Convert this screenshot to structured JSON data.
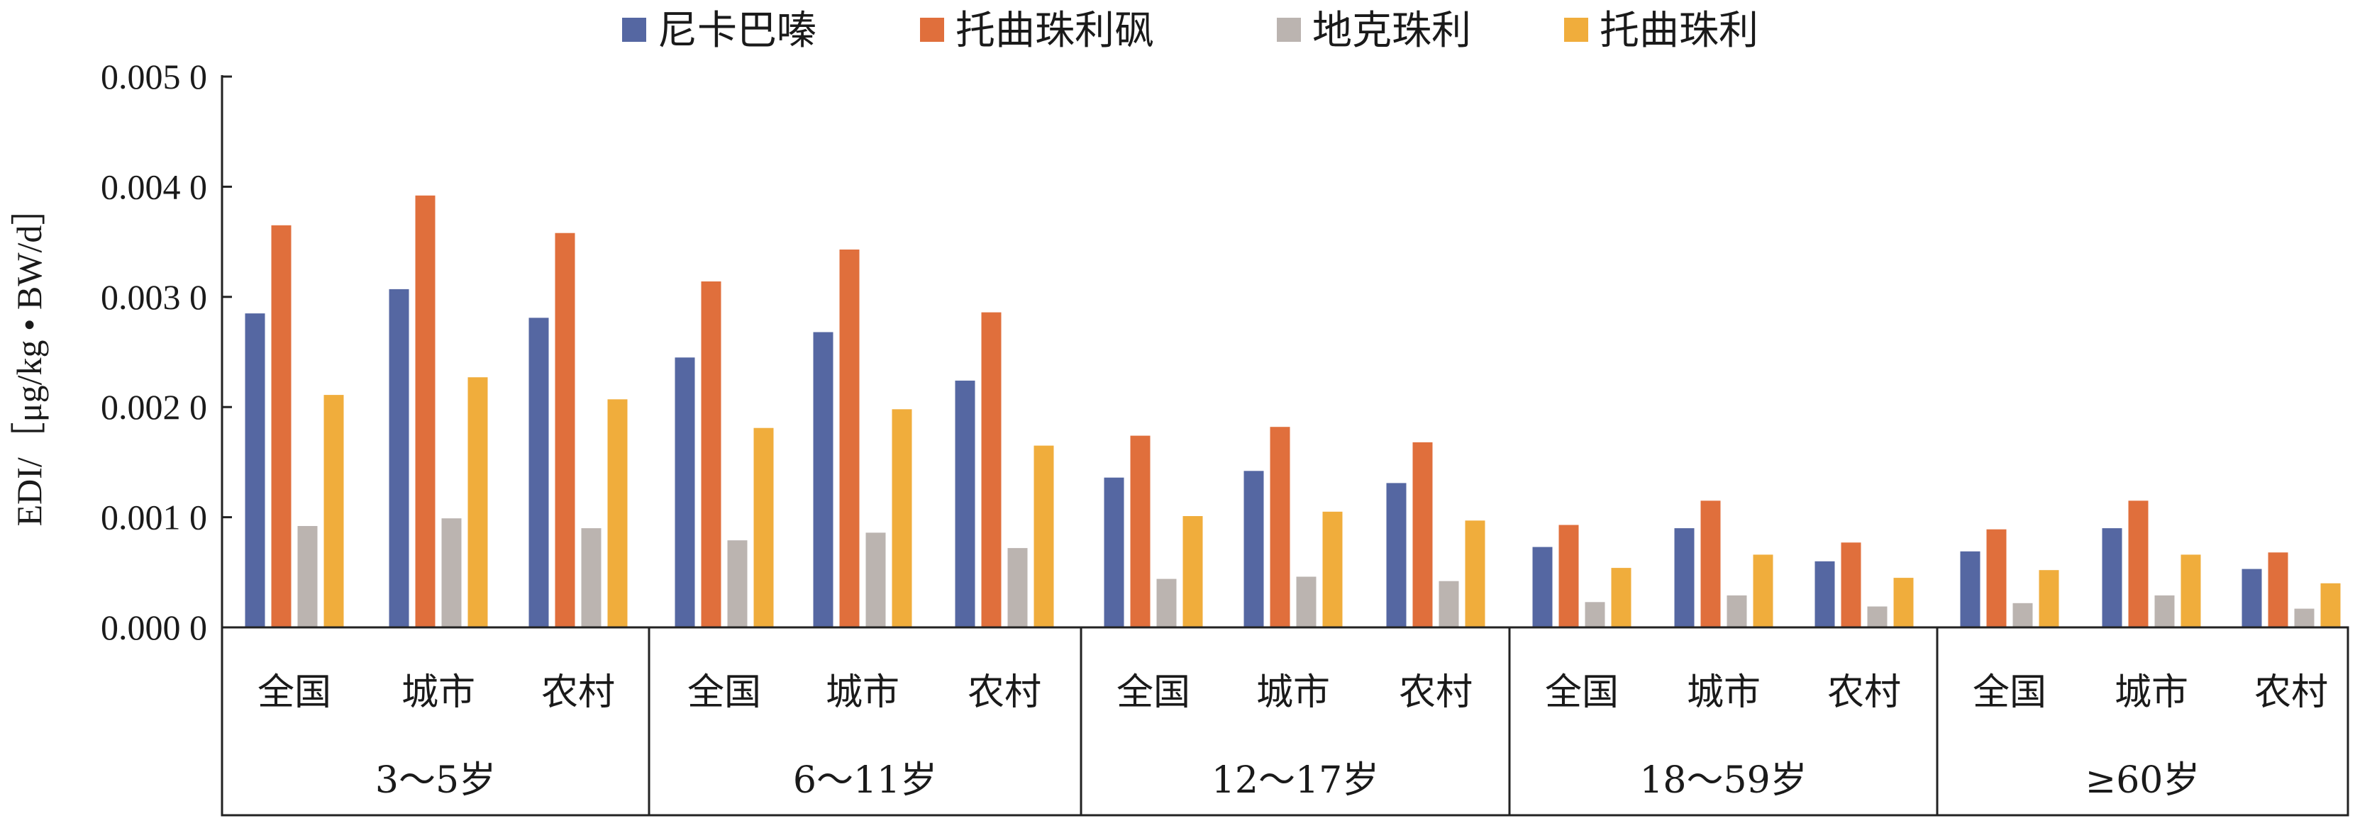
{
  "chart_data": {
    "type": "bar",
    "title": "",
    "xlabel": "",
    "ylabel": "EDI/［μg/kg • BW/d］",
    "ylim": [
      0,
      0.005
    ],
    "yticks": [
      "0.000 0",
      "0.001 0",
      "0.002 0",
      "0.003 0",
      "0.004 0",
      "0.005 0"
    ],
    "ytick_values": [
      0,
      0.001,
      0.002,
      0.003,
      0.004,
      0.005
    ],
    "grid": false,
    "legend_position": "top",
    "groups": [
      "3～5岁",
      "6～11岁",
      "12～17岁",
      "18～59岁",
      "≥60岁"
    ],
    "subcategories": [
      "全国",
      "城市",
      "农村"
    ],
    "categories": [
      "3～5岁 全国",
      "3～5岁 城市",
      "3～5岁 农村",
      "6～11岁 全国",
      "6～11岁 城市",
      "6～11岁 农村",
      "12～17岁 全国",
      "12～17岁 城市",
      "12～17岁 农村",
      "18～59岁 全国",
      "18～59岁 城市",
      "18～59岁 农村",
      "≥60岁 全国",
      "≥60岁 城市",
      "≥60岁 农村"
    ],
    "series": [
      {
        "name": "尼卡巴嗪",
        "color": "#5567a2",
        "values": [
          0.00285,
          0.00307,
          0.00281,
          0.00245,
          0.00268,
          0.00224,
          0.00136,
          0.00142,
          0.00131,
          0.00073,
          0.0009,
          0.0006,
          0.00069,
          0.0009,
          0.00053
        ]
      },
      {
        "name": "托曲珠利砜",
        "color": "#e06f3c",
        "values": [
          0.00365,
          0.00392,
          0.00358,
          0.00314,
          0.00343,
          0.00286,
          0.00174,
          0.00182,
          0.00168,
          0.00093,
          0.00115,
          0.00077,
          0.00089,
          0.00115,
          0.00068
        ]
      },
      {
        "name": "地克珠利",
        "color": "#bbb4b0",
        "values": [
          0.00092,
          0.00099,
          0.0009,
          0.00079,
          0.00086,
          0.00072,
          0.00044,
          0.00046,
          0.00042,
          0.00023,
          0.00029,
          0.00019,
          0.00022,
          0.00029,
          0.00017
        ]
      },
      {
        "name": "托曲珠利",
        "color": "#f0ad3c",
        "values": [
          0.00211,
          0.00227,
          0.00207,
          0.00181,
          0.00198,
          0.00165,
          0.00101,
          0.00105,
          0.00097,
          0.00054,
          0.00066,
          0.00045,
          0.00052,
          0.00066,
          0.0004
        ]
      }
    ]
  }
}
